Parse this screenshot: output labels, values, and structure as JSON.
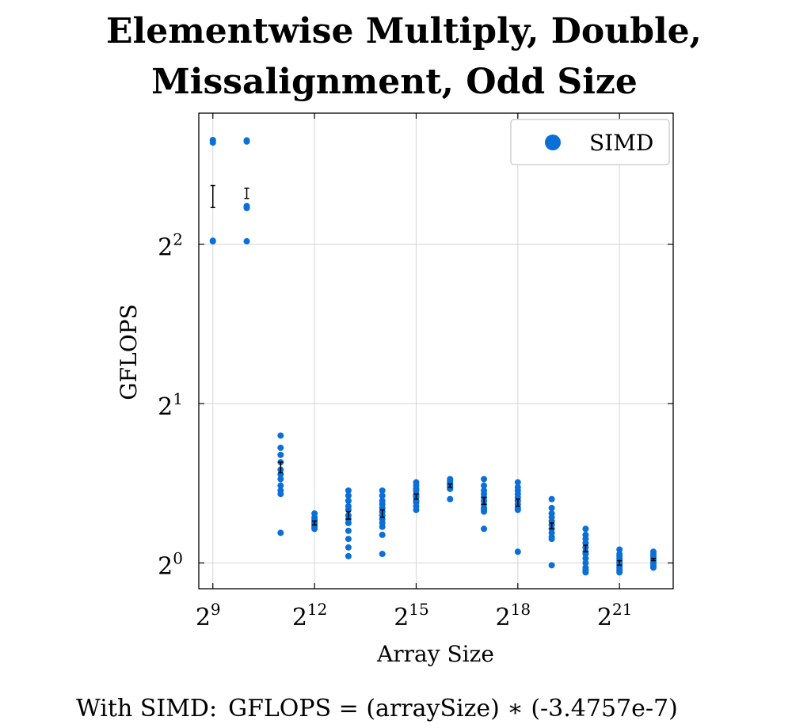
{
  "chart_data": {
    "type": "scatter",
    "title_lines": [
      "Elementwise Multiply, Double,",
      "Missalignment, Odd Size"
    ],
    "xlabel": "Array Size",
    "ylabel": "GFLOPS",
    "x_scale": "log2",
    "y_scale": "log2",
    "xlim": [
      384,
      6291456
    ],
    "ylim": [
      0.894,
      7.07
    ],
    "x_ticks": [
      {
        "base": "2",
        "exp": "9",
        "value": 512
      },
      {
        "base": "2",
        "exp": "12",
        "value": 4096
      },
      {
        "base": "2",
        "exp": "15",
        "value": 32768
      },
      {
        "base": "2",
        "exp": "18",
        "value": 262144
      },
      {
        "base": "2",
        "exp": "21",
        "value": 2097152
      }
    ],
    "y_ticks": [
      {
        "base": "2",
        "exp": "0",
        "value": 1
      },
      {
        "base": "2",
        "exp": "1",
        "value": 2
      },
      {
        "base": "2",
        "exp": "2",
        "value": 4
      }
    ],
    "grid": true,
    "legend_position": "top-right",
    "series": [
      {
        "name": "SIMD",
        "color": "#0a6fd6",
        "groups": [
          {
            "x": 512,
            "points": [
              6.29,
              6.27,
              6.22,
              4.06,
              4.05
            ],
            "err_low": 4.69,
            "err_high": 5.16
          },
          {
            "x": 1024,
            "points": [
              6.28,
              6.25,
              4.72,
              4.68,
              4.7,
              4.05
            ],
            "err_low": 4.88,
            "err_high": 5.1
          },
          {
            "x": 2048,
            "points": [
              1.74,
              1.65,
              1.6,
              1.55,
              1.5,
              1.47,
              1.44,
              1.4,
              1.37,
              1.35,
              1.14
            ],
            "err_low": 1.48,
            "err_high": 1.55
          },
          {
            "x": 4096,
            "points": [
              1.24,
              1.22,
              1.21,
              1.2,
              1.19,
              1.18,
              1.17,
              1.16
            ],
            "err_low": 1.18,
            "err_high": 1.2
          },
          {
            "x": 8192,
            "points": [
              1.37,
              1.34,
              1.31,
              1.28,
              1.26,
              1.23,
              1.21,
              1.19,
              1.15,
              1.11,
              1.07,
              1.03
            ],
            "err_low": 1.21,
            "err_high": 1.25
          },
          {
            "x": 16384,
            "points": [
              1.37,
              1.34,
              1.31,
              1.29,
              1.27,
              1.25,
              1.23,
              1.21,
              1.19,
              1.17,
              1.13,
              1.04
            ],
            "err_low": 1.22,
            "err_high": 1.26
          },
          {
            "x": 32768,
            "points": [
              1.42,
              1.4,
              1.38,
              1.37,
              1.35,
              1.34,
              1.33,
              1.31,
              1.3,
              1.28,
              1.26
            ],
            "err_low": 1.32,
            "err_high": 1.35
          },
          {
            "x": 65536,
            "points": [
              1.44,
              1.43,
              1.42,
              1.41,
              1.4,
              1.39,
              1.38,
              1.32
            ],
            "err_low": 1.39,
            "err_high": 1.41
          },
          {
            "x": 131072,
            "points": [
              1.44,
              1.4,
              1.37,
              1.35,
              1.33,
              1.31,
              1.29,
              1.27,
              1.26,
              1.25,
              1.16
            ],
            "err_low": 1.29,
            "err_high": 1.33
          },
          {
            "x": 262144,
            "points": [
              1.42,
              1.39,
              1.37,
              1.35,
              1.33,
              1.31,
              1.29,
              1.27,
              1.26,
              1.05
            ],
            "err_low": 1.28,
            "err_high": 1.32
          },
          {
            "x": 524288,
            "points": [
              1.32,
              1.27,
              1.24,
              1.22,
              1.2,
              1.18,
              1.16,
              1.14,
              1.12,
              1.11,
              0.99
            ],
            "err_low": 1.16,
            "err_high": 1.19
          },
          {
            "x": 1048576,
            "points": [
              1.16,
              1.13,
              1.11,
              1.09,
              1.07,
              1.05,
              1.04,
              1.02,
              1.0,
              0.98,
              0.97,
              0.96
            ],
            "err_low": 1.05,
            "err_high": 1.08
          },
          {
            "x": 2097152,
            "points": [
              1.06,
              1.04,
              1.03,
              1.02,
              1.01,
              1.0,
              0.99,
              0.98,
              0.97,
              0.96
            ],
            "err_low": 0.99,
            "err_high": 1.01
          },
          {
            "x": 4194304,
            "points": [
              1.05,
              1.04,
              1.03,
              1.02,
              1.01,
              1.0,
              0.99,
              0.98
            ],
            "err_low": 1.01,
            "err_high": 1.02
          }
        ]
      }
    ],
    "footer": {
      "prefix": "With SIMD:",
      "formula": "GFLOPS = (arraySize) ∗ (-3.4757e-7)"
    }
  }
}
